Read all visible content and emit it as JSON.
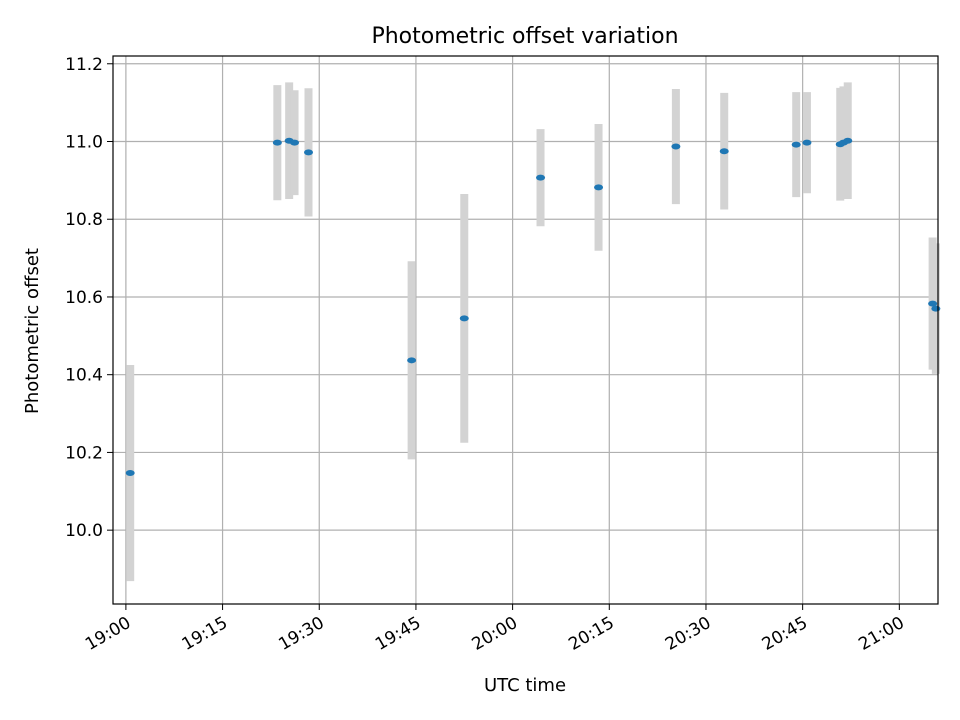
{
  "chart_data": {
    "type": "scatter",
    "title": "Photometric offset variation",
    "xlabel": "UTC time",
    "ylabel": "Photometric offset",
    "x_tick_labels": [
      "19:00",
      "19:15",
      "19:30",
      "19:45",
      "20:00",
      "20:15",
      "20:30",
      "20:45",
      "21:00"
    ],
    "y_tick_labels": [
      "10.0",
      "10.2",
      "10.4",
      "10.6",
      "10.8",
      "11.0",
      "11.2"
    ],
    "xlim": [
      "18:58",
      "21:06"
    ],
    "ylim": [
      9.81,
      11.22
    ],
    "grid": true,
    "colors": {
      "point": "#1f77b4",
      "errorbar": "#d3d3d3",
      "grid": "#b0b0b0"
    },
    "series": [
      {
        "points": [
          {
            "x": "19:00:40",
            "y": 10.147,
            "yerr": 0.278
          },
          {
            "x": "19:23:30",
            "y": 10.997,
            "yerr": 0.148
          },
          {
            "x": "19:25:20",
            "y": 11.002,
            "yerr": 0.15
          },
          {
            "x": "19:26:10",
            "y": 10.997,
            "yerr": 0.135
          },
          {
            "x": "19:28:20",
            "y": 10.972,
            "yerr": 0.165
          },
          {
            "x": "19:44:20",
            "y": 10.437,
            "yerr": 0.255
          },
          {
            "x": "19:52:30",
            "y": 10.545,
            "yerr": 0.32
          },
          {
            "x": "20:04:20",
            "y": 10.907,
            "yerr": 0.125
          },
          {
            "x": "20:13:20",
            "y": 10.882,
            "yerr": 0.163
          },
          {
            "x": "20:25:20",
            "y": 10.987,
            "yerr": 0.148
          },
          {
            "x": "20:32:50",
            "y": 10.975,
            "yerr": 0.15
          },
          {
            "x": "20:44:00",
            "y": 10.992,
            "yerr": 0.135
          },
          {
            "x": "20:45:40",
            "y": 10.997,
            "yerr": 0.13
          },
          {
            "x": "20:50:50",
            "y": 10.993,
            "yerr": 0.145
          },
          {
            "x": "20:51:20",
            "y": 10.997,
            "yerr": 0.145
          },
          {
            "x": "20:52:00",
            "y": 11.002,
            "yerr": 0.15
          },
          {
            "x": "21:05:10",
            "y": 10.583,
            "yerr": 0.17
          },
          {
            "x": "21:05:40",
            "y": 10.57,
            "yerr": 0.168
          }
        ]
      }
    ]
  }
}
